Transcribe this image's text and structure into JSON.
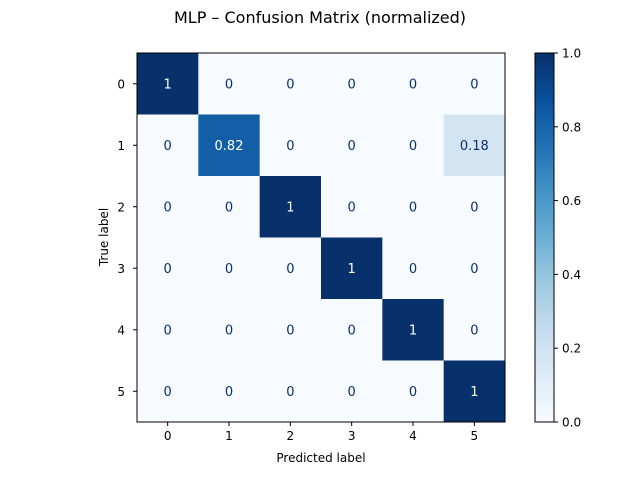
{
  "chart_data": {
    "type": "heatmap",
    "title": "MLP – Confusion Matrix (normalized)",
    "xlabel": "Predicted label",
    "ylabel": "True label",
    "x_categories": [
      "0",
      "1",
      "2",
      "3",
      "4",
      "5"
    ],
    "y_categories": [
      "0",
      "1",
      "2",
      "3",
      "4",
      "5"
    ],
    "values": [
      [
        1,
        0,
        0,
        0,
        0,
        0
      ],
      [
        0,
        0.82,
        0,
        0,
        0,
        0.18
      ],
      [
        0,
        0,
        1,
        0,
        0,
        0
      ],
      [
        0,
        0,
        0,
        1,
        0,
        0
      ],
      [
        0,
        0,
        0,
        0,
        1,
        0
      ],
      [
        0,
        0,
        0,
        0,
        0,
        1
      ]
    ],
    "cell_labels": [
      [
        "1",
        "0",
        "0",
        "0",
        "0",
        "0"
      ],
      [
        "0",
        "0.82",
        "0",
        "0",
        "0",
        "0.18"
      ],
      [
        "0",
        "0",
        "1",
        "0",
        "0",
        "0"
      ],
      [
        "0",
        "0",
        "0",
        "1",
        "0",
        "0"
      ],
      [
        "0",
        "0",
        "0",
        "0",
        "1",
        "0"
      ],
      [
        "0",
        "0",
        "0",
        "0",
        "0",
        "1"
      ]
    ],
    "colormap": "Blues",
    "colorbar": {
      "range": [
        0.0,
        1.0
      ],
      "ticks": [
        0.0,
        0.2,
        0.4,
        0.6,
        0.8,
        1.0
      ],
      "tick_labels": [
        "0.0",
        "0.2",
        "0.4",
        "0.6",
        "0.8",
        "1.0"
      ]
    },
    "colors": {
      "low": "#f7fbff",
      "high": "#08306b",
      "text_dark": "#08306b",
      "text_light": "#ffffff"
    }
  }
}
